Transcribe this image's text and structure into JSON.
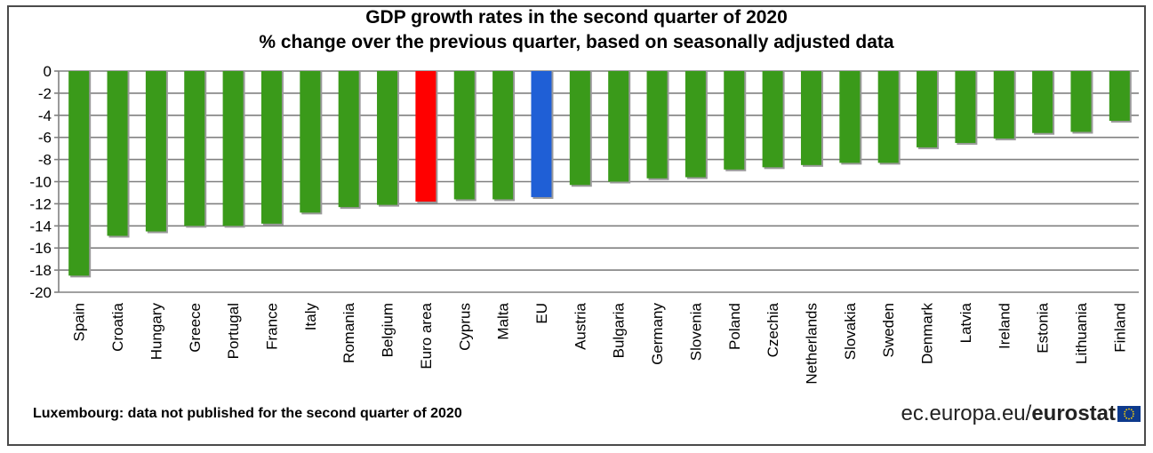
{
  "chart_data": {
    "type": "bar",
    "title": "GDP growth rates in the second quarter of 2020",
    "subtitle": "% change over the previous quarter, based on seasonally adjusted data",
    "categories": [
      "Spain",
      "Croatia",
      "Hungary",
      "Greece",
      "Portugal",
      "France",
      "Italy",
      "Romania",
      "Belgium",
      "Euro area",
      "Cyprus",
      "Malta",
      "EU",
      "Austria",
      "Bulgaria",
      "Germany",
      "Slovenia",
      "Poland",
      "Czechia",
      "Netherlands",
      "Slovakia",
      "Sweden",
      "Denmark",
      "Latvia",
      "Ireland",
      "Estonia",
      "Lithuania",
      "Finland"
    ],
    "values": [
      -18.5,
      -14.9,
      -14.5,
      -14.0,
      -14.0,
      -13.8,
      -12.8,
      -12.3,
      -12.1,
      -11.8,
      -11.6,
      -11.6,
      -11.4,
      -10.3,
      -10.0,
      -9.7,
      -9.6,
      -8.9,
      -8.7,
      -8.5,
      -8.3,
      -8.3,
      -6.9,
      -6.5,
      -6.1,
      -5.6,
      -5.5,
      -4.5
    ],
    "highlight": {
      "Euro area": "#ff0000",
      "EU": "#1f5fd6"
    },
    "bar_color": "#3a9a1a",
    "ylim": [
      -20,
      0
    ],
    "yticks": [
      0,
      -2,
      -4,
      -6,
      -8,
      -10,
      -12,
      -14,
      -16,
      -18,
      -20
    ],
    "grid": true
  },
  "footnote": "Luxembourg:  data not published  for the second quarter of 2020",
  "brand": {
    "domain": "ec.europa.eu/",
    "name": "eurostat"
  }
}
